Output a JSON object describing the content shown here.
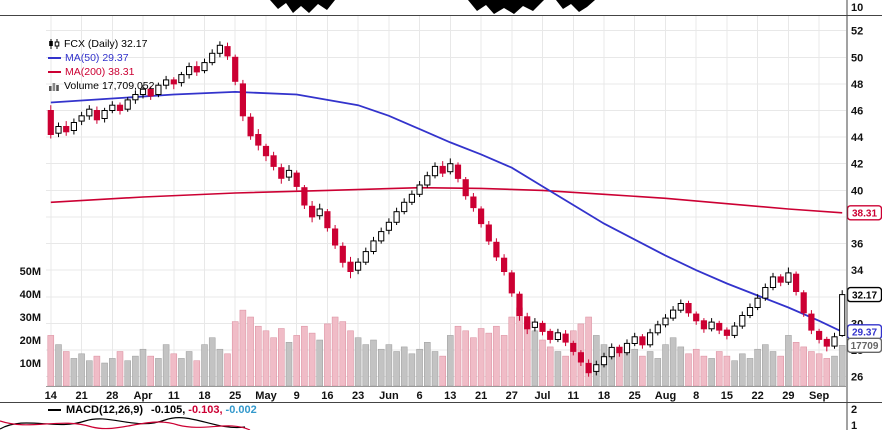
{
  "legend": {
    "symbol_title": "FCX (Daily) 32.17",
    "ma50": "MA(50) 29.37",
    "ma200": "MA(200) 38.31",
    "volume": "Volume 17,709,052"
  },
  "upper_pane": {
    "right_axis_label": "10"
  },
  "macd_pane": {
    "label": "MACD(12,26,9)",
    "values": [
      {
        "text": "-0.105,",
        "color": "#000000"
      },
      {
        "text": "-0.103,",
        "color": "#cc0033"
      },
      {
        "text": "-0.002",
        "color": "#3399cc"
      }
    ],
    "right_axis_labels": [
      "2",
      "1"
    ]
  },
  "chart_data": {
    "type": "candlestick",
    "symbol": "FCX",
    "period": "Daily",
    "last_price": 32.17,
    "ma50_value": 29.37,
    "ma200_value": 38.31,
    "last_volume_text": "17,709,052",
    "price_range": [
      25.3,
      52.8
    ],
    "grid_price_min": 26,
    "grid_price_max": 52,
    "grid_price_step": 2,
    "price_axis_ticks": [
      52,
      50,
      48,
      46,
      44,
      42,
      40,
      36,
      34,
      30,
      28,
      26
    ],
    "volume_axis_ticks": [
      "50M",
      "40M",
      "30M",
      "20M",
      "10M"
    ],
    "x_tick_labels": [
      "14",
      "21",
      "28",
      "Apr",
      "11",
      "18",
      "25",
      "May",
      "9",
      "16",
      "23",
      "Jun",
      "6",
      "13",
      "21",
      "27",
      "Jul",
      "11",
      "18",
      "25",
      "Aug",
      "8",
      "15",
      "22",
      "29",
      "Sep"
    ],
    "x_tick_interval": 4,
    "badges": [
      {
        "text": "38.31",
        "price": 38.31,
        "color": "#cc0033"
      },
      {
        "text": "32.17",
        "price": 32.17,
        "color": "#000000"
      },
      {
        "text": "29.37",
        "price": 29.37,
        "color": "#3333cc"
      },
      {
        "text": "17709",
        "volume_m": 17.7,
        "color": "#666666"
      }
    ],
    "colors": {
      "up": "#000000",
      "down": "#cc0033",
      "vol_up": "#c3c3c3",
      "vol_down": "#f0bcc7",
      "vol_up_edge": "#9a9a9a",
      "vol_down_edge": "#d9899b",
      "ma50": "#3333cc",
      "ma200": "#cc0033",
      "grid": "#e8e8e8"
    },
    "candles": [
      [
        46.0,
        46.4,
        43.9,
        44.2,
        22
      ],
      [
        44.3,
        45.1,
        44.0,
        44.8,
        18
      ],
      [
        44.8,
        45.2,
        44.1,
        44.4,
        15
      ],
      [
        44.5,
        45.4,
        44.2,
        45.1,
        12
      ],
      [
        45.2,
        45.9,
        44.9,
        45.6,
        14
      ],
      [
        45.6,
        46.4,
        45.3,
        46.1,
        11
      ],
      [
        46.0,
        46.3,
        45.0,
        45.3,
        13
      ],
      [
        45.4,
        46.2,
        45.1,
        46.0,
        10
      ],
      [
        46.0,
        46.7,
        45.8,
        46.4,
        12
      ],
      [
        46.4,
        46.6,
        45.7,
        46.0,
        15
      ],
      [
        46.1,
        47.0,
        45.9,
        46.8,
        11
      ],
      [
        46.8,
        47.5,
        46.5,
        47.2,
        13
      ],
      [
        47.2,
        47.9,
        46.9,
        47.6,
        16
      ],
      [
        47.6,
        47.8,
        46.8,
        47.1,
        13
      ],
      [
        47.2,
        48.1,
        47.0,
        47.9,
        12
      ],
      [
        47.9,
        48.6,
        47.6,
        48.3,
        18
      ],
      [
        48.3,
        48.5,
        47.6,
        48.0,
        14
      ],
      [
        48.1,
        48.9,
        47.8,
        48.7,
        12
      ],
      [
        48.7,
        49.6,
        48.4,
        49.3,
        15
      ],
      [
        49.3,
        49.7,
        48.6,
        48.9,
        11
      ],
      [
        49.0,
        49.9,
        48.8,
        49.6,
        18
      ],
      [
        49.6,
        50.6,
        49.4,
        50.3,
        21
      ],
      [
        50.3,
        51.2,
        50.0,
        50.9,
        16
      ],
      [
        50.8,
        51.1,
        49.8,
        50.1,
        14
      ],
      [
        50.0,
        50.2,
        47.9,
        48.2,
        28
      ],
      [
        48.0,
        48.3,
        45.2,
        45.6,
        33
      ],
      [
        45.5,
        45.8,
        43.8,
        44.1,
        30
      ],
      [
        44.2,
        44.6,
        43.0,
        43.4,
        26
      ],
      [
        43.3,
        43.5,
        42.2,
        42.6,
        24
      ],
      [
        42.6,
        42.9,
        41.5,
        41.8,
        21
      ],
      [
        41.7,
        42.0,
        40.5,
        40.9,
        25
      ],
      [
        41.0,
        41.9,
        40.7,
        41.5,
        19
      ],
      [
        41.3,
        41.5,
        40.0,
        40.3,
        22
      ],
      [
        40.2,
        40.4,
        38.6,
        38.9,
        26
      ],
      [
        38.8,
        39.2,
        37.6,
        38.0,
        23
      ],
      [
        38.1,
        39.0,
        37.8,
        38.6,
        20
      ],
      [
        38.4,
        38.6,
        36.9,
        37.2,
        27
      ],
      [
        37.1,
        37.4,
        35.6,
        35.9,
        30
      ],
      [
        35.8,
        36.1,
        34.2,
        34.6,
        28
      ],
      [
        34.6,
        35.0,
        33.4,
        33.9,
        24
      ],
      [
        34.0,
        34.9,
        33.7,
        34.6,
        21
      ],
      [
        34.6,
        35.7,
        34.4,
        35.4,
        18
      ],
      [
        35.4,
        36.5,
        35.2,
        36.2,
        20
      ],
      [
        36.2,
        37.2,
        36.0,
        36.9,
        16
      ],
      [
        37.0,
        37.9,
        36.7,
        37.6,
        18
      ],
      [
        37.6,
        38.7,
        37.4,
        38.4,
        15
      ],
      [
        38.4,
        39.4,
        38.2,
        39.1,
        17
      ],
      [
        39.1,
        40.0,
        38.9,
        39.7,
        14
      ],
      [
        39.7,
        40.7,
        39.5,
        40.4,
        16
      ],
      [
        40.4,
        41.4,
        40.2,
        41.1,
        19
      ],
      [
        41.1,
        42.1,
        40.9,
        41.8,
        15
      ],
      [
        41.8,
        42.2,
        41.0,
        41.3,
        13
      ],
      [
        41.4,
        42.4,
        41.2,
        42.0,
        22
      ],
      [
        41.9,
        42.1,
        40.6,
        40.9,
        26
      ],
      [
        40.8,
        41.0,
        39.3,
        39.6,
        24
      ],
      [
        39.5,
        39.8,
        38.4,
        38.7,
        21
      ],
      [
        38.6,
        38.8,
        37.2,
        37.5,
        25
      ],
      [
        37.4,
        37.7,
        35.9,
        36.2,
        23
      ],
      [
        36.1,
        36.4,
        34.7,
        35.0,
        26
      ],
      [
        34.9,
        35.2,
        33.6,
        33.9,
        22
      ],
      [
        33.8,
        34.0,
        32.0,
        32.3,
        30
      ],
      [
        32.2,
        32.4,
        30.2,
        30.6,
        34
      ],
      [
        30.5,
        30.8,
        29.2,
        29.6,
        28
      ],
      [
        29.7,
        30.4,
        29.4,
        30.1,
        24
      ],
      [
        30.0,
        30.2,
        29.1,
        29.4,
        20
      ],
      [
        29.4,
        29.6,
        28.5,
        28.8,
        17
      ],
      [
        28.8,
        29.6,
        28.6,
        29.3,
        15
      ],
      [
        29.2,
        29.5,
        28.3,
        28.6,
        13
      ],
      [
        28.5,
        28.7,
        27.6,
        27.9,
        24
      ],
      [
        27.8,
        28.0,
        26.8,
        27.1,
        27
      ],
      [
        27.0,
        27.3,
        26.0,
        26.3,
        30
      ],
      [
        26.4,
        27.2,
        26.1,
        26.9,
        22
      ],
      [
        26.9,
        27.8,
        26.7,
        27.5,
        18
      ],
      [
        27.5,
        28.5,
        27.3,
        28.2,
        15
      ],
      [
        28.2,
        28.4,
        27.5,
        27.8,
        17
      ],
      [
        27.8,
        28.8,
        27.6,
        28.5,
        14
      ],
      [
        28.5,
        29.3,
        28.3,
        29.0,
        16
      ],
      [
        29.0,
        29.2,
        28.1,
        28.4,
        13
      ],
      [
        28.4,
        29.6,
        28.2,
        29.3,
        15
      ],
      [
        29.3,
        30.2,
        29.1,
        29.9,
        12
      ],
      [
        29.9,
        30.7,
        29.7,
        30.4,
        18
      ],
      [
        30.4,
        31.3,
        30.2,
        31.0,
        21
      ],
      [
        31.0,
        31.8,
        30.8,
        31.5,
        17
      ],
      [
        31.5,
        31.7,
        30.5,
        30.8,
        14
      ],
      [
        30.7,
        30.9,
        29.9,
        30.2,
        16
      ],
      [
        30.2,
        30.4,
        29.3,
        29.6,
        13
      ],
      [
        29.6,
        30.4,
        29.4,
        30.1,
        12
      ],
      [
        30.0,
        30.2,
        29.2,
        29.5,
        15
      ],
      [
        29.5,
        29.7,
        28.8,
        29.1,
        13
      ],
      [
        29.1,
        30.1,
        28.9,
        29.8,
        11
      ],
      [
        29.8,
        30.9,
        29.6,
        30.6,
        14
      ],
      [
        30.6,
        31.5,
        30.4,
        31.2,
        12
      ],
      [
        31.2,
        32.2,
        31.0,
        31.9,
        16
      ],
      [
        31.9,
        33.0,
        31.7,
        32.7,
        18
      ],
      [
        32.7,
        33.8,
        32.5,
        33.5,
        15
      ],
      [
        33.5,
        33.7,
        32.8,
        33.1,
        13
      ],
      [
        33.1,
        34.2,
        32.9,
        33.8,
        22
      ],
      [
        33.7,
        33.9,
        32.1,
        32.4,
        19
      ],
      [
        32.3,
        32.5,
        30.5,
        30.8,
        17
      ],
      [
        30.7,
        31.0,
        29.2,
        29.5,
        15
      ],
      [
        29.4,
        29.6,
        28.5,
        28.8,
        14
      ],
      [
        28.8,
        29.0,
        27.9,
        28.3,
        12
      ],
      [
        28.3,
        29.3,
        28.1,
        29.0,
        13
      ],
      [
        29.1,
        32.5,
        29.0,
        32.17,
        17.7
      ]
    ],
    "ma50_points": [
      [
        0,
        46.6
      ],
      [
        8,
        46.9
      ],
      [
        16,
        47.2
      ],
      [
        24,
        47.4
      ],
      [
        32,
        47.2
      ],
      [
        40,
        46.4
      ],
      [
        44,
        45.6
      ],
      [
        48,
        44.6
      ],
      [
        52,
        43.6
      ],
      [
        56,
        42.7
      ],
      [
        60,
        41.7
      ],
      [
        64,
        40.3
      ],
      [
        68,
        38.9
      ],
      [
        72,
        37.5
      ],
      [
        76,
        36.3
      ],
      [
        80,
        35.1
      ],
      [
        84,
        34.0
      ],
      [
        88,
        33.0
      ],
      [
        92,
        32.1
      ],
      [
        96,
        31.2
      ],
      [
        100,
        30.2
      ],
      [
        103,
        29.37
      ]
    ],
    "ma200_points": [
      [
        0,
        39.1
      ],
      [
        12,
        39.5
      ],
      [
        24,
        39.8
      ],
      [
        36,
        40.0
      ],
      [
        48,
        40.2
      ],
      [
        56,
        40.15
      ],
      [
        64,
        40.0
      ],
      [
        72,
        39.7
      ],
      [
        80,
        39.4
      ],
      [
        88,
        39.0
      ],
      [
        96,
        38.6
      ],
      [
        103,
        38.31
      ]
    ]
  }
}
